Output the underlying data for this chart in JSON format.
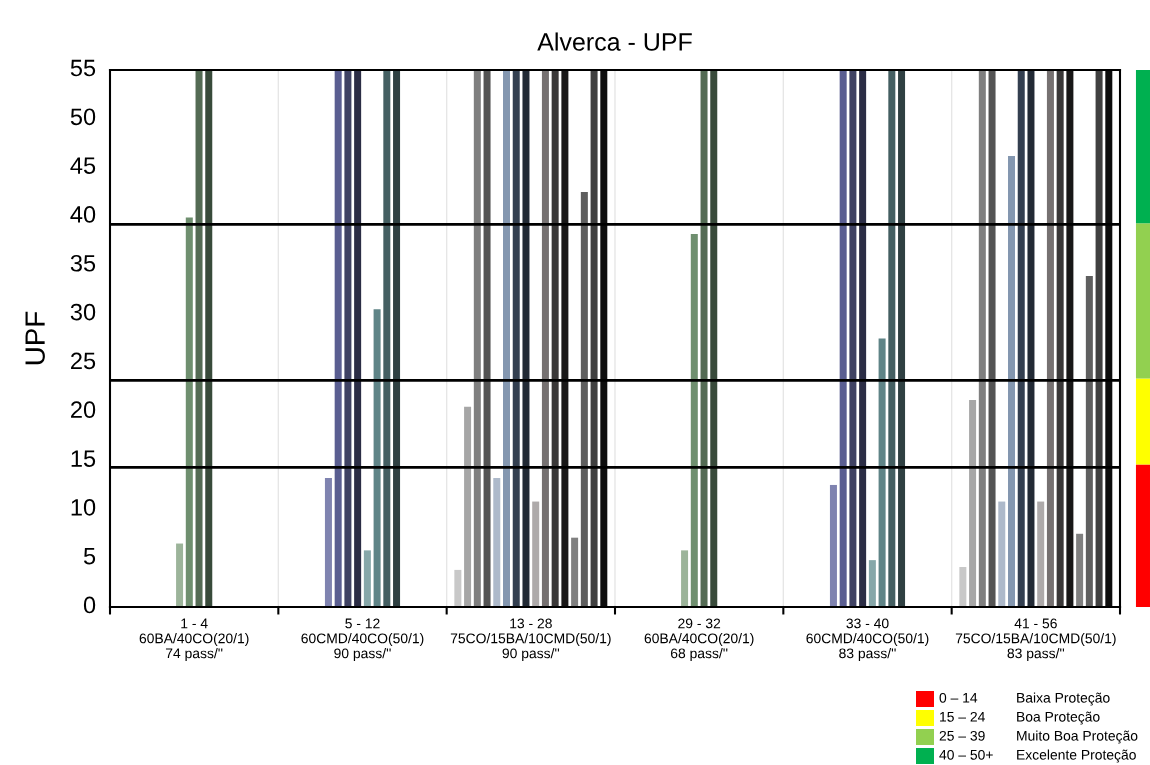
{
  "chart_data": {
    "type": "bar",
    "title": "Alverca - UPF",
    "ylabel": "UPF",
    "categories": [
      "1 - 4\n60BA/40CO(20/1)\n74 pass/''",
      "5 - 12\n60CMD/40CO(50/1)\n90 pass/''",
      "13 - 28\n75CO/15BA/10CMD(50/1)\n90 pass/''",
      "29 - 32\n60BA/40CO(20/1)\n68 pass/''",
      "33 - 40\n60CMD/40CO(50/1)\n83 pass/''",
      "41 - 56\n75CO/15BA/10CMD(50/1)\n83 pass/''"
    ],
    "series": [
      {
        "values": [
          null,
          null,
          3.8,
          null,
          null,
          4.1
        ],
        "colors": [
          null,
          null,
          "#c8c8c8",
          null,
          null,
          "#c8c8c8"
        ]
      },
      {
        "values": [
          null,
          null,
          20.5,
          null,
          null,
          21.2
        ],
        "colors": [
          null,
          null,
          "#a6a6a6",
          null,
          null,
          "#a6a6a6"
        ]
      },
      {
        "values": [
          null,
          null,
          55,
          null,
          null,
          55
        ],
        "colors": [
          null,
          null,
          "#7f7f7f",
          null,
          null,
          "#7f7f7f"
        ]
      },
      {
        "values": [
          null,
          null,
          55,
          null,
          null,
          55
        ],
        "colors": [
          null,
          null,
          "#545454",
          null,
          null,
          "#545454"
        ]
      },
      {
        "values": [
          null,
          13.2,
          13.2,
          null,
          12.5,
          10.8
        ],
        "colors": [
          null,
          "#7f83b0",
          "#adb9ca",
          null,
          "#7f83b0",
          "#adb9ca"
        ]
      },
      {
        "values": [
          null,
          55,
          55,
          null,
          55,
          46.2
        ],
        "colors": [
          null,
          "#5a5e91",
          "#8497b0",
          null,
          "#5a5e91",
          "#8497b0"
        ]
      },
      {
        "values": [
          6.5,
          55,
          55,
          5.8,
          55,
          55
        ],
        "colors": [
          "#9cb49a",
          "#3f4263",
          "#333f50",
          "#9cb49a",
          "#3f4263",
          "#333f50"
        ]
      },
      {
        "values": [
          39.9,
          55,
          55,
          38.2,
          55,
          55
        ],
        "colors": [
          "#6f8f6f",
          "#2b2d45",
          "#222a35",
          "#6f8f6f",
          "#2b2d45",
          "#222a35"
        ]
      },
      {
        "values": [
          55,
          5.8,
          10.8,
          55,
          4.8,
          10.8
        ],
        "colors": [
          "#546b54",
          "#86a7a9",
          "#aeaaaa",
          "#546b54",
          "#86a7a9",
          "#aeaaaa"
        ]
      },
      {
        "values": [
          55,
          30.5,
          55,
          55,
          27.5,
          55
        ],
        "colors": [
          "#384a3a",
          "#5f8487",
          "#767171",
          "#384a3a",
          "#5f8487",
          "#767171"
        ]
      },
      {
        "values": [
          null,
          55,
          55,
          null,
          55,
          55
        ],
        "colors": [
          null,
          "#445f62",
          "#3a3838",
          null,
          "#445f62",
          "#3a3838"
        ]
      },
      {
        "values": [
          null,
          55,
          55,
          null,
          55,
          55
        ],
        "colors": [
          null,
          "#2f4042",
          "#181717",
          null,
          "#2f4042",
          "#181717"
        ]
      },
      {
        "values": [
          null,
          null,
          7.1,
          null,
          null,
          7.5
        ],
        "colors": [
          null,
          null,
          "#808080",
          null,
          null,
          "#808080"
        ]
      },
      {
        "values": [
          null,
          null,
          42.5,
          null,
          null,
          33.9
        ],
        "colors": [
          null,
          null,
          "#5f5f5f",
          null,
          null,
          "#5f5f5f"
        ]
      },
      {
        "values": [
          null,
          null,
          55,
          null,
          null,
          55
        ],
        "colors": [
          null,
          null,
          "#404040",
          null,
          null,
          "#404040"
        ]
      },
      {
        "values": [
          null,
          null,
          55,
          null,
          null,
          55
        ],
        "colors": [
          null,
          null,
          "#0d0d0d",
          null,
          null,
          "#0d0d0d"
        ]
      }
    ],
    "ylim": [
      0,
      55
    ],
    "yticks": [
      0,
      5,
      10,
      15,
      20,
      25,
      30,
      35,
      40,
      45,
      50,
      55
    ],
    "ref_lines": [
      {
        "axis": "y",
        "value": 14.3,
        "color": "#000000"
      },
      {
        "axis": "y",
        "value": 23.2,
        "color": "#000000"
      },
      {
        "axis": "y",
        "value": 39.2,
        "color": "#000000"
      }
    ],
    "annotations": [
      "0 – 14",
      "Baixa Proteção",
      "15 – 24",
      "Boa Proteção",
      "25 – 39",
      "Muito Boa Proteção",
      "40 – 50+",
      "Excelente Proteção"
    ],
    "grid": "x"
  }
}
